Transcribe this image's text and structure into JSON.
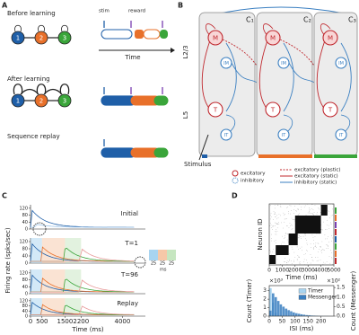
{
  "panels": {
    "A": {
      "label": "A",
      "before": "Before learning",
      "after": "After learning",
      "replay": "Sequence replay",
      "stim": "stim",
      "reward": "reward",
      "time": "Time",
      "nodes": [
        "1",
        "2",
        "3"
      ]
    },
    "B": {
      "label": "B",
      "columns": [
        "C₁",
        "C₂",
        "C₃"
      ],
      "layers": [
        "L2/3",
        "L5"
      ],
      "neurons": [
        "M",
        "IM",
        "T",
        "IT"
      ],
      "stimulus": "Stimulus",
      "legend": [
        "excitatory",
        "inhibitory",
        "excitatory (plastic)",
        "excitatory (static)",
        "inhibitory (static)"
      ]
    },
    "C": {
      "label": "C",
      "ylabel": "Firing rate (spks/sec)",
      "xlabel": "Time (ms)",
      "xlim": [
        0,
        5000
      ],
      "xticks": [
        0,
        500,
        1500,
        2200,
        4000
      ],
      "ylim": [
        0,
        140
      ],
      "yticks": [
        0,
        40,
        80,
        120
      ],
      "subplots": [
        "Initial",
        "T=1",
        "T=96",
        "Replay"
      ],
      "inset_ticks": [
        25,
        25,
        25
      ],
      "inset_unit": "ms"
    },
    "D": {
      "label": "D",
      "raster_ylabel": "Neuron ID",
      "raster_xlabel": "Time (ms)",
      "raster_xlim": [
        0,
        5000
      ],
      "raster_xticks": [
        0,
        1000,
        2000,
        3000,
        4000,
        5000
      ],
      "hist_xlabel": "ISI (ms)",
      "hist_ylabel": "Count (Timer)",
      "hist_y2label": "Count (Messenger)",
      "y_scale": "×10³",
      "y2_scale": "×10²",
      "bins": [
        0,
        10,
        20,
        30,
        40,
        50,
        60,
        70,
        80,
        90,
        100,
        110,
        120,
        130,
        140,
        150,
        160,
        170,
        180,
        190,
        200,
        210,
        220,
        230,
        240,
        250
      ],
      "xlim": [
        0,
        250
      ],
      "xticks": [
        0,
        50,
        100,
        150,
        200
      ],
      "ylim": [
        0,
        3.6
      ],
      "yticks": [
        0,
        1,
        2,
        3
      ],
      "y2lim": [
        0,
        1.6
      ],
      "y2ticks": [
        {
          "value": 0,
          "label": "0.0"
        },
        0.5,
        {
          "value": 1,
          "label": "1.0"
        },
        1.5
      ],
      "series": [
        {
          "name": "Timer",
          "color": "#a8d4f0",
          "values": [
            3.3,
            1.6,
            0.4,
            0.12,
            0.05,
            0.02,
            0.01,
            0,
            0,
            0,
            0,
            0,
            0,
            0,
            0,
            0,
            0,
            0,
            0,
            0,
            0,
            0,
            0,
            0,
            0
          ]
        },
        {
          "name": "Messenger",
          "color": "#3a7fc1",
          "axis": "y2",
          "values": [
            0.3,
            1.2,
            1.0,
            0.8,
            0.62,
            0.5,
            0.4,
            0.32,
            0.26,
            0.2,
            0.16,
            0.13,
            0.1,
            0.08,
            0.06,
            0.05,
            0.04,
            0.03,
            0.025,
            0.02,
            0.015,
            0.01,
            0.01,
            0.005,
            0
          ]
        }
      ]
    }
  }
}
